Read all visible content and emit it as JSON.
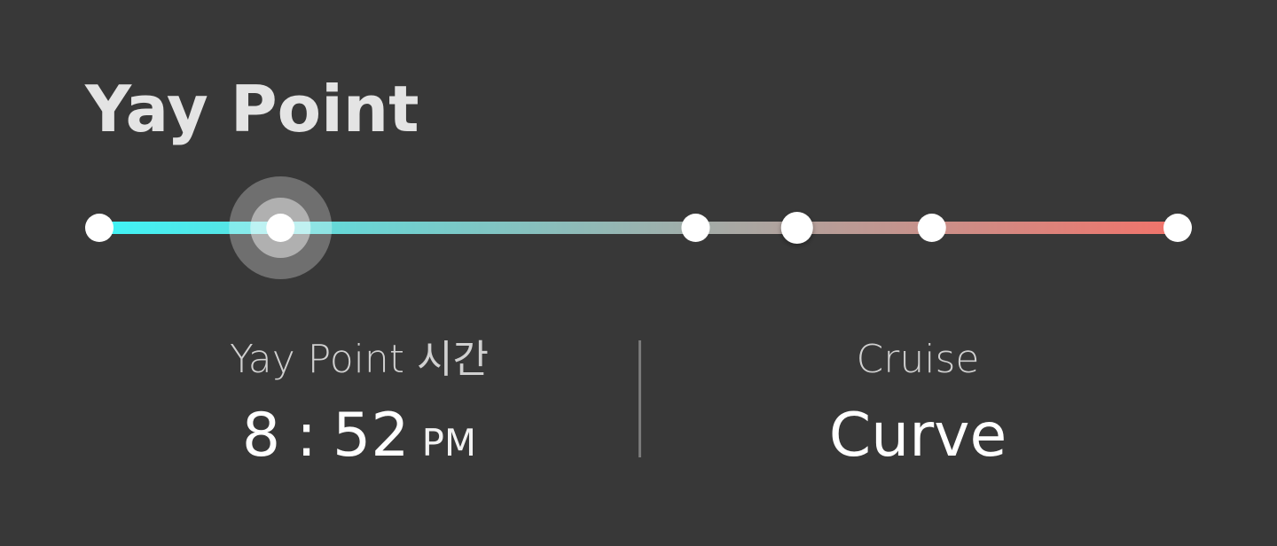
{
  "title": "Yay Point",
  "timeline": {
    "gradient_start_color": "#3ff4f6",
    "gradient_end_color": "#f2736a",
    "node_color": "#ffffff",
    "selected_node_index": 1,
    "nodes": [
      {
        "position": 0.0,
        "style": "normal"
      },
      {
        "position": 0.168,
        "style": "selected"
      },
      {
        "position": 0.553,
        "style": "normal"
      },
      {
        "position": 0.647,
        "style": "large"
      },
      {
        "position": 0.772,
        "style": "normal"
      },
      {
        "position": 1.0,
        "style": "normal"
      }
    ]
  },
  "yay_time": {
    "label": "Yay Point 시간",
    "hour": "8",
    "colon": ":",
    "minute": "52",
    "ampm": "PM"
  },
  "cruise": {
    "label": "Cruise",
    "value": "Curve"
  }
}
